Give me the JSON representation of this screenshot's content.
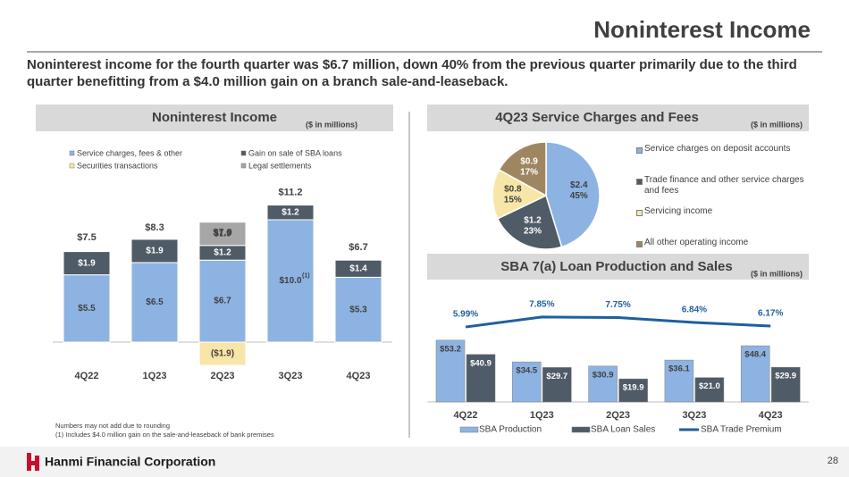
{
  "slide": {
    "title": "Noninterest Income",
    "summary": "Noninterest income for the fourth quarter was $6.7 million, down 40% from the previous quarter primarily due to the third quarter benefitting from a $4.0 million gain on a branch sale-and-leaseback.",
    "notes": [
      "Numbers may not add due to rounding",
      "(1)    Includes $4.0 million gain on the sale-and-leaseback of bank premises"
    ],
    "company": "Hanmi Financial Corporation",
    "page": 28
  },
  "chart_data": [
    {
      "type": "bar",
      "stacked": true,
      "title": "Noninterest Income",
      "unit_note": "($ in millions)",
      "categories": [
        "4Q22",
        "1Q23",
        "2Q23",
        "3Q23",
        "4Q23"
      ],
      "series": [
        {
          "name": "Service charges, fees & other",
          "color": "#8db3e2",
          "values": [
            5.5,
            6.5,
            6.7,
            10.0,
            5.3
          ],
          "value_labels": [
            "$5.5",
            "$6.5",
            "$6.7",
            "$10.0",
            "$5.3"
          ]
        },
        {
          "name": "Gain on sale of SBA loans",
          "color": "#4f5b66",
          "values": [
            1.9,
            1.9,
            1.2,
            1.2,
            1.4
          ],
          "value_labels": [
            "$1.9",
            "$1.9",
            "$1.2",
            "$1.2",
            "$1.4"
          ]
        },
        {
          "name": "Securities transactions",
          "color": "#f8e6a8",
          "values": [
            null,
            null,
            -1.9,
            null,
            null
          ],
          "value_labels": [
            null,
            null,
            "($1.9)",
            null,
            null
          ]
        },
        {
          "name": "Legal settlements",
          "color": "#a6a6a6",
          "values": [
            null,
            null,
            1.9,
            null,
            null
          ],
          "value_labels": [
            null,
            null,
            "$1.9",
            null,
            null
          ]
        }
      ],
      "totals": [
        7.5,
        8.3,
        7.9,
        11.2,
        6.7
      ],
      "total_labels": [
        "$7.5",
        "$8.3",
        "$7.9",
        "$11.2",
        "$6.7"
      ],
      "footnote_ref": "(1)"
    },
    {
      "type": "pie",
      "title": "4Q23 Service Charges and Fees",
      "unit_note": "($ in millions)",
      "categories": [
        "Service charges on deposit accounts",
        "Trade finance and other service charges and fees",
        "Servicing income",
        "All other operating income"
      ],
      "values": [
        2.4,
        1.2,
        0.8,
        0.9
      ],
      "value_labels": [
        "$2.4",
        "$1.2",
        "$0.8",
        "$0.9"
      ],
      "percents": [
        45,
        23,
        15,
        17
      ],
      "percent_labels": [
        "45%",
        "23%",
        "15%",
        "17%"
      ],
      "colors": [
        "#8db3e2",
        "#4f5b66",
        "#f8e6a8",
        "#a08660"
      ]
    },
    {
      "type": "bar",
      "title": "SBA 7(a) Loan Production and Sales",
      "unit_note": "($ in millions)",
      "categories": [
        "4Q22",
        "1Q23",
        "2Q23",
        "3Q23",
        "4Q23"
      ],
      "series": [
        {
          "name": "SBA Production",
          "color": "#8db3e2",
          "values": [
            53.2,
            34.5,
            30.9,
            36.1,
            48.4
          ],
          "value_labels": [
            "$53.2",
            "$34.5",
            "$30.9",
            "$36.1",
            "$48.4"
          ]
        },
        {
          "name": "SBA Loan Sales",
          "color": "#4f5b66",
          "values": [
            40.9,
            29.7,
            19.9,
            21.0,
            29.9
          ],
          "value_labels": [
            "$40.9",
            "$29.7",
            "$19.9",
            "$21.0",
            "$29.9"
          ]
        },
        {
          "name": "SBA Trade Premium",
          "type": "line",
          "axis": "y2",
          "color": "#1f5f9f",
          "values": [
            5.99,
            7.85,
            7.75,
            6.84,
            6.17
          ],
          "value_labels": [
            "5.99%",
            "7.85%",
            "7.75%",
            "6.84%",
            "6.17%"
          ]
        }
      ]
    }
  ]
}
